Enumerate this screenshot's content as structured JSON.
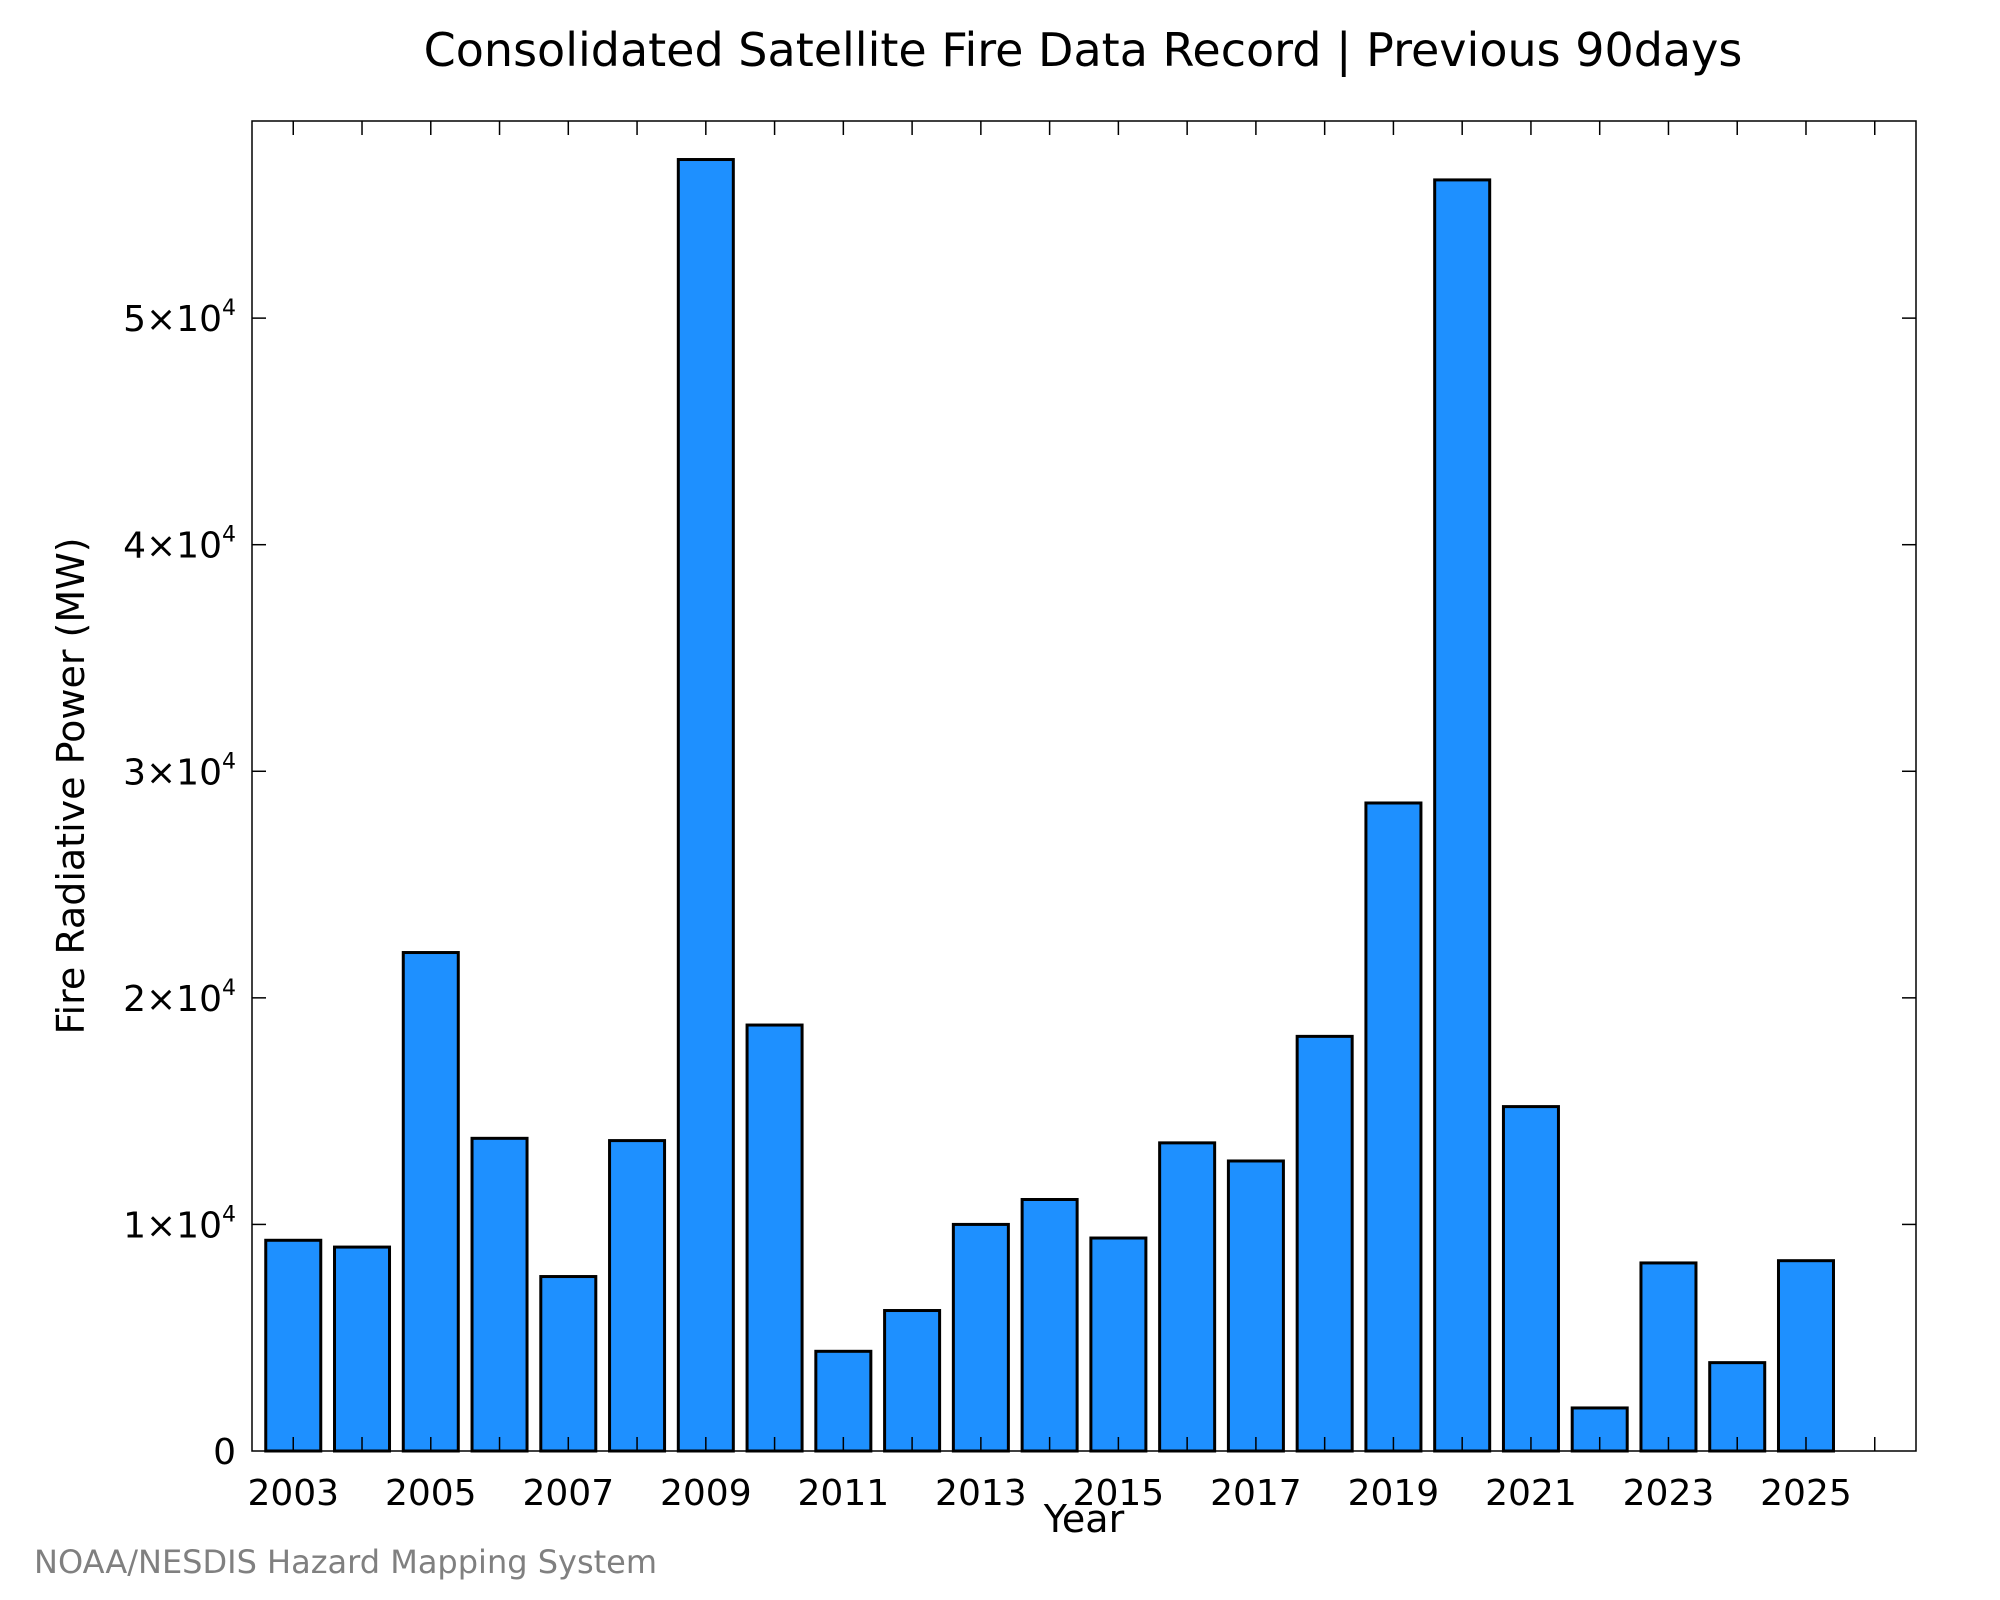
{
  "chart_data": {
    "type": "bar",
    "title": "Consolidated Satellite Fire Data Record | Previous 90days",
    "xlabel": "Year",
    "ylabel": "Fire Radiative Power (MW)",
    "categories": [
      "2003",
      "2004",
      "2005",
      "2006",
      "2007",
      "2008",
      "2009",
      "2010",
      "2011",
      "2012",
      "2013",
      "2014",
      "2015",
      "2016",
      "2017",
      "2018",
      "2019",
      "2020",
      "2021",
      "2022",
      "2023",
      "2024",
      "2025"
    ],
    "values": [
      9300,
      9000,
      22000,
      13800,
      7700,
      13700,
      57000,
      18800,
      4400,
      6200,
      10000,
      11100,
      9400,
      13600,
      12800,
      18300,
      28600,
      56100,
      15200,
      1900,
      8300,
      3900,
      8400
    ],
    "ylim": [
      0,
      58700
    ],
    "xlim": [
      2002.4,
      2026.6
    ],
    "x_tick_labels": [
      "2003",
      "2005",
      "2007",
      "2009",
      "2011",
      "2013",
      "2015",
      "2017",
      "2019",
      "2021",
      "2023",
      "2025"
    ],
    "y_ticks": [
      {
        "value": 0,
        "mantissa": "0",
        "exponent": ""
      },
      {
        "value": 10000,
        "mantissa": "1×10",
        "exponent": "4"
      },
      {
        "value": 20000,
        "mantissa": "2×10",
        "exponent": "4"
      },
      {
        "value": 30000,
        "mantissa": "3×10",
        "exponent": "4"
      },
      {
        "value": 40000,
        "mantissa": "4×10",
        "exponent": "4"
      },
      {
        "value": 50000,
        "mantissa": "5×10",
        "exponent": "4"
      }
    ],
    "bar_color": "#1e90ff",
    "bar_edge_color": "#000000",
    "grid": false,
    "legend": "none"
  },
  "credit": "NOAA/NESDIS Hazard Mapping System"
}
